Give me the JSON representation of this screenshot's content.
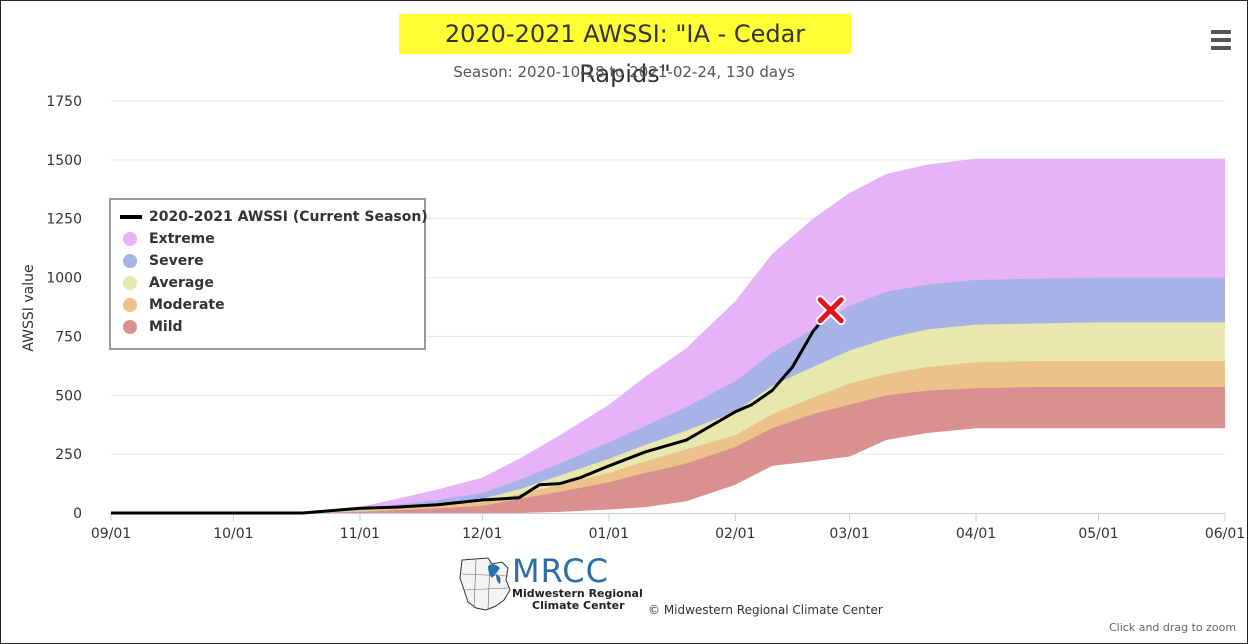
{
  "header": {
    "title": "2020-2021 AWSSI: \"IA - Cedar Rapids\"",
    "subtitle": "Season: 2020-10-18 to 2021-02-24, 130 days",
    "menu_icon": "hamburger-menu-icon"
  },
  "footer": {
    "logo_name": "MRCC",
    "logo_line1": "Midwestern Regional",
    "logo_line2": "Climate Center",
    "credits": "© Midwestern Regional Climate Center",
    "zoom_hint": "Click and drag to zoom"
  },
  "legend": {
    "items": [
      {
        "label": "2020-2021 AWSSI (Current Season)",
        "color": "#000000",
        "kind": "line"
      },
      {
        "label": "Extreme",
        "color": "#e6b3fa",
        "kind": "dot"
      },
      {
        "label": "Severe",
        "color": "#a7b3e6",
        "kind": "dot"
      },
      {
        "label": "Average",
        "color": "#e6e8ad",
        "kind": "dot"
      },
      {
        "label": "Moderate",
        "color": "#edc18a",
        "kind": "dot"
      },
      {
        "label": "Mild",
        "color": "#d99090",
        "kind": "dot"
      }
    ]
  },
  "chart_data": {
    "type": "area",
    "ylabel": "AWSSI value",
    "ylim": [
      0,
      1750
    ],
    "yticks": [
      0,
      250,
      500,
      750,
      1000,
      1250,
      1500,
      1750
    ],
    "xticks": [
      "09/01",
      "10/01",
      "11/01",
      "12/01",
      "01/01",
      "02/01",
      "03/01",
      "04/01",
      "05/01",
      "06/01"
    ],
    "x_range": [
      "2020-09-01",
      "2021-06-01"
    ],
    "grid": "horizontal",
    "legend_position": "left",
    "bands": [
      {
        "name": "Extreme",
        "color": "#e6b3fa",
        "x": [
          "2020-09-01",
          "2020-10-20",
          "2020-11-01",
          "2020-11-10",
          "2020-11-20",
          "2020-12-01",
          "2020-12-10",
          "2020-12-20",
          "2021-01-01",
          "2021-01-10",
          "2021-01-20",
          "2021-02-01",
          "2021-02-10",
          "2021-02-20",
          "2021-03-01",
          "2021-03-10",
          "2021-03-20",
          "2021-04-01",
          "2021-04-15",
          "2021-05-01",
          "2021-05-15",
          "2021-06-01"
        ],
        "lower": [
          0,
          0,
          2,
          5,
          10,
          25,
          40,
          70,
          110,
          150,
          210,
          290,
          370,
          450,
          560,
          640,
          690,
          700,
          705,
          705,
          705,
          705
        ],
        "upper": [
          0,
          5,
          25,
          60,
          100,
          150,
          230,
          330,
          460,
          580,
          700,
          900,
          1100,
          1250,
          1360,
          1440,
          1480,
          1505,
          1505,
          1505,
          1505,
          1505
        ]
      },
      {
        "name": "Severe",
        "color": "#a7b3e6",
        "x": [
          "2020-09-01",
          "2020-10-20",
          "2020-11-01",
          "2020-11-10",
          "2020-11-20",
          "2020-12-01",
          "2020-12-10",
          "2020-12-20",
          "2021-01-01",
          "2021-01-10",
          "2021-01-20",
          "2021-02-01",
          "2021-02-10",
          "2021-02-20",
          "2021-03-01",
          "2021-03-10",
          "2021-03-20",
          "2021-04-01",
          "2021-04-15",
          "2021-05-01",
          "2021-05-15",
          "2021-06-01"
        ],
        "lower": [
          0,
          0,
          2,
          5,
          10,
          20,
          35,
          60,
          90,
          130,
          180,
          250,
          320,
          390,
          480,
          550,
          600,
          620,
          625,
          625,
          625,
          625
        ],
        "upper": [
          0,
          3,
          15,
          35,
          55,
          85,
          140,
          210,
          300,
          370,
          450,
          560,
          680,
          780,
          880,
          940,
          970,
          990,
          995,
          1000,
          1000,
          1000
        ]
      },
      {
        "name": "Average",
        "color": "#e6e8ad",
        "x": [
          "2020-09-01",
          "2020-10-20",
          "2020-11-01",
          "2020-11-10",
          "2020-11-20",
          "2020-12-01",
          "2020-12-10",
          "2020-12-20",
          "2021-01-01",
          "2021-01-10",
          "2021-01-20",
          "2021-02-01",
          "2021-02-10",
          "2021-02-20",
          "2021-03-01",
          "2021-03-10",
          "2021-03-20",
          "2021-04-01",
          "2021-04-15",
          "2021-05-01",
          "2021-05-15",
          "2021-06-01"
        ],
        "lower": [
          0,
          0,
          2,
          5,
          8,
          15,
          30,
          50,
          80,
          110,
          150,
          200,
          260,
          310,
          370,
          420,
          460,
          480,
          485,
          485,
          485,
          485
        ],
        "upper": [
          0,
          2,
          10,
          25,
          40,
          60,
          100,
          160,
          230,
          290,
          350,
          430,
          540,
          620,
          690,
          740,
          780,
          800,
          805,
          810,
          810,
          810
        ]
      },
      {
        "name": "Moderate",
        "color": "#edc18a",
        "x": [
          "2020-09-01",
          "2020-10-20",
          "2020-11-01",
          "2020-11-10",
          "2020-11-20",
          "2020-12-01",
          "2020-12-10",
          "2020-12-20",
          "2021-01-01",
          "2021-01-10",
          "2021-01-20",
          "2021-02-01",
          "2021-02-10",
          "2021-02-20",
          "2021-03-01",
          "2021-03-10",
          "2021-03-20",
          "2021-04-01",
          "2021-04-15",
          "2021-05-01",
          "2021-05-15",
          "2021-06-01"
        ],
        "lower": [
          0,
          0,
          1,
          3,
          6,
          12,
          25,
          40,
          65,
          90,
          120,
          160,
          200,
          240,
          290,
          330,
          360,
          375,
          380,
          380,
          380,
          380
        ],
        "upper": [
          0,
          1,
          8,
          18,
          30,
          45,
          80,
          120,
          170,
          220,
          270,
          330,
          420,
          490,
          550,
          590,
          620,
          640,
          645,
          645,
          645,
          645
        ]
      },
      {
        "name": "Mild",
        "color": "#d99090",
        "x": [
          "2020-09-01",
          "2020-10-20",
          "2020-11-01",
          "2020-11-10",
          "2020-11-20",
          "2020-12-01",
          "2020-12-10",
          "2020-12-20",
          "2021-01-01",
          "2021-01-10",
          "2021-01-20",
          "2021-02-01",
          "2021-02-10",
          "2021-02-20",
          "2021-03-01",
          "2021-03-10",
          "2021-03-20",
          "2021-04-01",
          "2021-04-15",
          "2021-05-01",
          "2021-05-15",
          "2021-06-01"
        ],
        "lower": [
          0,
          0,
          0,
          0,
          0,
          0,
          0,
          5,
          15,
          25,
          50,
          120,
          200,
          220,
          240,
          310,
          340,
          360,
          360,
          360,
          360,
          360
        ],
        "upper": [
          0,
          0,
          5,
          12,
          20,
          30,
          60,
          90,
          130,
          170,
          210,
          280,
          360,
          420,
          460,
          500,
          520,
          530,
          535,
          535,
          535,
          535
        ]
      }
    ],
    "series": [
      {
        "name": "2020-2021 AWSSI (Current Season)",
        "color": "#000000",
        "x": [
          "2020-09-01",
          "2020-10-18",
          "2020-10-25",
          "2020-11-01",
          "2020-11-10",
          "2020-11-20",
          "2020-12-01",
          "2020-12-10",
          "2020-12-15",
          "2020-12-20",
          "2020-12-25",
          "2021-01-01",
          "2021-01-10",
          "2021-01-20",
          "2021-01-25",
          "2021-02-01",
          "2021-02-05",
          "2021-02-10",
          "2021-02-15",
          "2021-02-20",
          "2021-02-24"
        ],
        "y": [
          0,
          0,
          10,
          20,
          25,
          35,
          55,
          65,
          120,
          125,
          150,
          200,
          260,
          310,
          360,
          430,
          460,
          520,
          620,
          770,
          855
        ]
      }
    ],
    "marker": {
      "x": "2021-02-24",
      "y": 855,
      "icon": "red-x-icon"
    }
  }
}
